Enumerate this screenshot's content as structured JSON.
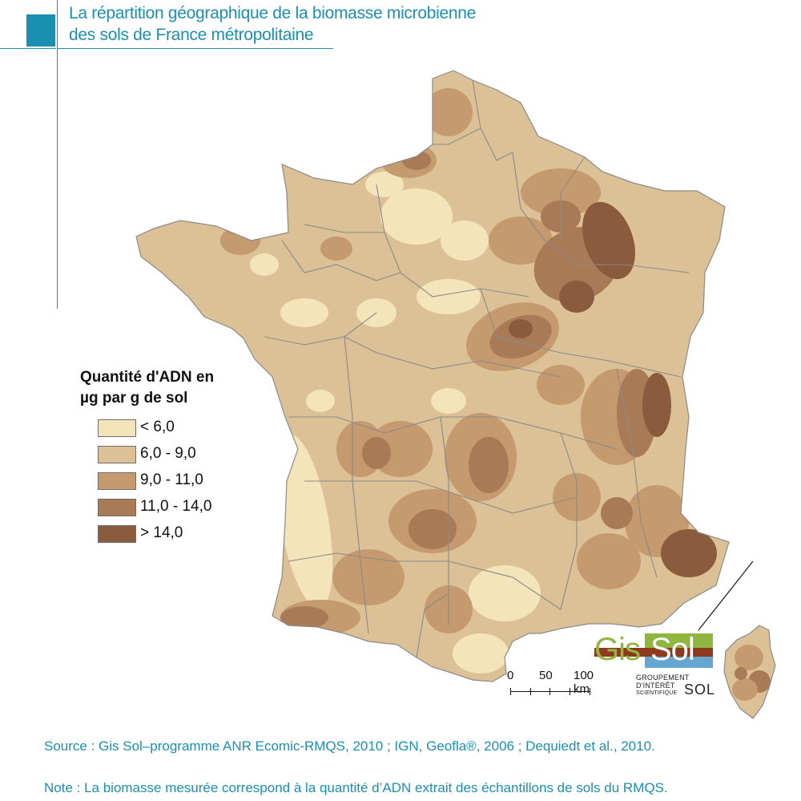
{
  "header": {
    "title_line1": "La répartition géographique de la biomasse microbienne",
    "title_line2": "des sols de France métropolitaine"
  },
  "map": {
    "subject": "France métropolitaine",
    "inset": "Corse"
  },
  "legend": {
    "title_line1": "Quantité d'ADN en",
    "title_line2": "µg par g de sol",
    "classes": [
      {
        "label": "< 6,0",
        "color": "#f3e5b9"
      },
      {
        "label": "6,0 - 9,0",
        "color": "#dcc196"
      },
      {
        "label": "9,0 - 11,0",
        "color": "#c49a6e"
      },
      {
        "label": "11,0 - 14,0",
        "color": "#a97a56"
      },
      {
        "label": "> 14,0",
        "color": "#8a5b3c"
      }
    ]
  },
  "scale_bar": {
    "ticks": [
      "0",
      "50",
      "100 km"
    ]
  },
  "logo": {
    "gis": "Gis",
    "sol": "Sol",
    "line1": "GROUPEMENT",
    "line2": "D'INTÉRÊT",
    "line3": "SCIENTIFIQUE",
    "sol2": "SOL",
    "colors": {
      "green": "#8fb63e",
      "brown": "#8e3a1f",
      "blue": "#66a7d1"
    }
  },
  "footer": {
    "source": "Source : Gis Sol–programme ANR Ecomic-RMQS, 2010 ; IGN, Geofla®, 2006 ; Dequiedt et al., 2010.",
    "note": "Note : La biomasse mesurée correspond à la quantité d’ADN extrait des échantillons de sols du RMQS."
  },
  "colors": {
    "accent": "#1b8fb0"
  }
}
